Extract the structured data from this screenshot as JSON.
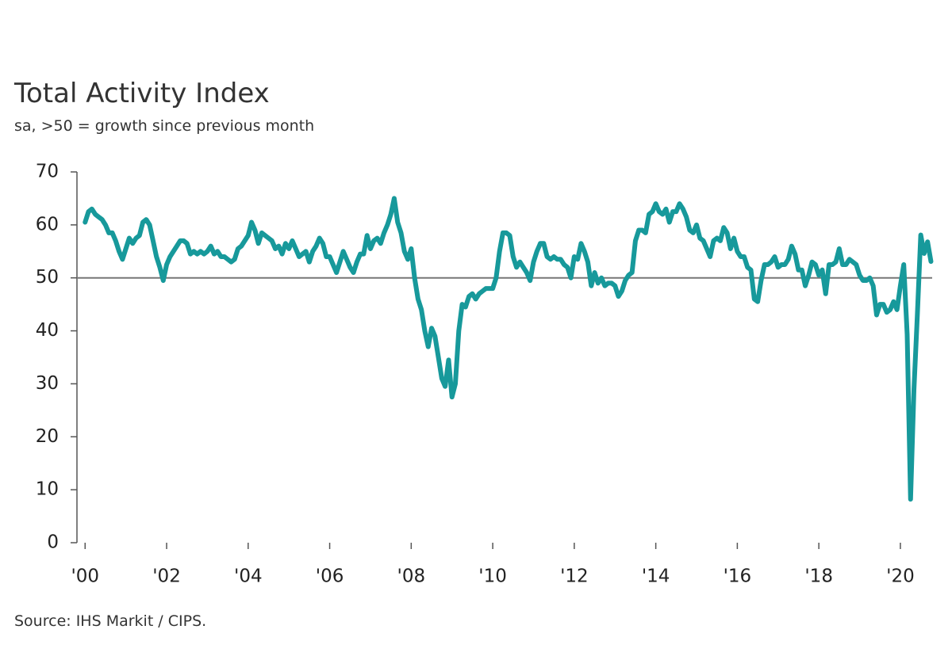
{
  "chart_data": {
    "type": "line",
    "title": "Total Activity Index",
    "subtitle": "sa, >50 = growth since previous month",
    "source": "Source: IHS Markit / CIPS.",
    "x": [
      2000,
      2000.083,
      2000.167,
      2000.25,
      2000.333,
      2000.417,
      2000.5,
      2000.583,
      2000.667,
      2000.75,
      2000.833,
      2000.917,
      2001,
      2001.083,
      2001.167,
      2001.25,
      2001.333,
      2001.417,
      2001.5,
      2001.583,
      2001.667,
      2001.75,
      2001.833,
      2001.917,
      2002,
      2002.083,
      2002.167,
      2002.25,
      2002.333,
      2002.417,
      2002.5,
      2002.583,
      2002.667,
      2002.75,
      2002.833,
      2002.917,
      2003,
      2003.083,
      2003.167,
      2003.25,
      2003.333,
      2003.417,
      2003.5,
      2003.583,
      2003.667,
      2003.75,
      2003.833,
      2003.917,
      2004,
      2004.083,
      2004.167,
      2004.25,
      2004.333,
      2004.417,
      2004.5,
      2004.583,
      2004.667,
      2004.75,
      2004.833,
      2004.917,
      2005,
      2005.083,
      2005.167,
      2005.25,
      2005.333,
      2005.417,
      2005.5,
      2005.583,
      2005.667,
      2005.75,
      2005.833,
      2005.917,
      2006,
      2006.083,
      2006.167,
      2006.25,
      2006.333,
      2006.417,
      2006.5,
      2006.583,
      2006.667,
      2006.75,
      2006.833,
      2006.917,
      2007,
      2007.083,
      2007.167,
      2007.25,
      2007.333,
      2007.417,
      2007.5,
      2007.583,
      2007.667,
      2007.75,
      2007.833,
      2007.917,
      2008,
      2008.083,
      2008.167,
      2008.25,
      2008.333,
      2008.417,
      2008.5,
      2008.583,
      2008.667,
      2008.75,
      2008.833,
      2008.917,
      2009,
      2009.083,
      2009.167,
      2009.25,
      2009.333,
      2009.417,
      2009.5,
      2009.583,
      2009.667,
      2009.75,
      2009.833,
      2009.917,
      2010,
      2010.083,
      2010.167,
      2010.25,
      2010.333,
      2010.417,
      2010.5,
      2010.583,
      2010.667,
      2010.75,
      2010.833,
      2010.917,
      2011,
      2011.083,
      2011.167,
      2011.25,
      2011.333,
      2011.417,
      2011.5,
      2011.583,
      2011.667,
      2011.75,
      2011.833,
      2011.917,
      2012,
      2012.083,
      2012.167,
      2012.25,
      2012.333,
      2012.417,
      2012.5,
      2012.583,
      2012.667,
      2012.75,
      2012.833,
      2012.917,
      2013,
      2013.083,
      2013.167,
      2013.25,
      2013.333,
      2013.417,
      2013.5,
      2013.583,
      2013.667,
      2013.75,
      2013.833,
      2013.917,
      2014,
      2014.083,
      2014.167,
      2014.25,
      2014.333,
      2014.417,
      2014.5,
      2014.583,
      2014.667,
      2014.75,
      2014.833,
      2014.917,
      2015,
      2015.083,
      2015.167,
      2015.25,
      2015.333,
      2015.417,
      2015.5,
      2015.583,
      2015.667,
      2015.75,
      2015.833,
      2015.917,
      2016,
      2016.083,
      2016.167,
      2016.25,
      2016.333,
      2016.417,
      2016.5,
      2016.583,
      2016.667,
      2016.75,
      2016.833,
      2016.917,
      2017,
      2017.083,
      2017.167,
      2017.25,
      2017.333,
      2017.417,
      2017.5,
      2017.583,
      2017.667,
      2017.75,
      2017.833,
      2017.917,
      2018,
      2018.083,
      2018.167,
      2018.25,
      2018.333,
      2018.417,
      2018.5,
      2018.583,
      2018.667,
      2018.75,
      2018.833,
      2018.917,
      2019,
      2019.083,
      2019.167,
      2019.25,
      2019.333,
      2019.417,
      2019.5,
      2019.583,
      2019.667,
      2019.75,
      2019.833,
      2019.917,
      2020,
      2020.083,
      2020.167,
      2020.25,
      2020.333,
      2020.417,
      2020.5,
      2020.583,
      2020.667,
      2020.75
    ],
    "series": [
      {
        "name": "Total Activity Index",
        "color": "#17999b",
        "values": [
          60.5,
          62.5,
          63,
          62,
          61.5,
          61,
          60,
          58.5,
          58.5,
          57,
          55,
          53.5,
          55.5,
          57.5,
          56.5,
          57.5,
          58,
          60.5,
          61,
          60,
          57,
          54,
          52,
          49.5,
          52.5,
          54,
          55,
          56,
          57,
          57,
          56.5,
          54.5,
          55,
          54.5,
          55,
          54.5,
          55,
          56,
          54.5,
          55,
          54,
          54,
          53.5,
          53,
          53.5,
          55.5,
          56,
          57,
          58,
          60.5,
          59,
          56.5,
          58.5,
          58,
          57.5,
          57,
          55.5,
          56,
          54.5,
          56.5,
          55.5,
          57,
          55.5,
          54,
          54.5,
          55,
          53,
          55,
          56,
          57.5,
          56.5,
          54,
          54,
          52.5,
          51,
          53,
          55,
          53.5,
          52,
          51,
          53,
          54.5,
          54.5,
          58,
          55.5,
          57,
          57.5,
          56.5,
          58.5,
          60,
          62,
          65,
          60.5,
          58.5,
          55,
          53.5,
          55.5,
          50,
          46,
          44,
          40,
          37,
          40.5,
          39,
          35,
          31,
          29.5,
          34.5,
          27.5,
          30,
          40,
          45,
          44.5,
          46.5,
          47,
          46,
          47,
          47.5,
          48,
          48,
          48,
          50,
          55,
          58.5,
          58.5,
          58,
          54,
          52,
          53,
          52,
          51,
          49.5,
          53,
          55,
          56.5,
          56.5,
          54,
          53.5,
          54,
          53.5,
          53.5,
          52.5,
          52,
          50,
          54,
          53.5,
          56.5,
          55,
          53,
          48.5,
          51,
          49,
          50,
          48.5,
          49,
          49,
          48.5,
          46.5,
          47.5,
          49.5,
          50.5,
          51,
          57,
          59,
          59,
          58.5,
          62,
          62.5,
          64,
          62.5,
          62,
          63,
          60.5,
          62.5,
          62.5,
          64,
          63,
          61.5,
          59,
          58.5,
          60,
          57.5,
          57,
          55.5,
          54,
          57,
          57.5,
          57,
          59.5,
          58.5,
          55.5,
          57.5,
          55,
          54,
          54,
          52,
          51.5,
          46,
          45.5,
          49.5,
          52.5,
          52.5,
          53,
          54,
          52,
          52.5,
          52.5,
          53.5,
          56,
          54.5,
          51.5,
          51.5,
          48.5,
          50.5,
          53,
          52.5,
          50.5,
          51.5,
          47,
          52.5,
          52.5,
          53,
          55.5,
          52.5,
          52.5,
          53.5,
          53,
          52.5,
          50.5,
          49.5,
          49.5,
          50,
          48.5,
          43,
          45,
          45,
          43.5,
          44,
          45.5,
          44,
          48.5,
          52.5,
          39.3,
          8.2,
          28.9,
          43.1,
          58.1,
          54.6,
          56.8,
          53.1
        ]
      }
    ],
    "xlim": [
      1999.8,
      2020.78
    ],
    "xticks": [
      {
        "value": 2000,
        "label": "'00"
      },
      {
        "value": 2002,
        "label": "'02"
      },
      {
        "value": 2004,
        "label": "'04"
      },
      {
        "value": 2006,
        "label": "'06"
      },
      {
        "value": 2008,
        "label": "'08"
      },
      {
        "value": 2010,
        "label": "'10"
      },
      {
        "value": 2012,
        "label": "'12"
      },
      {
        "value": 2014,
        "label": "'14"
      },
      {
        "value": 2016,
        "label": "'16"
      },
      {
        "value": 2018,
        "label": "'18"
      },
      {
        "value": 2020,
        "label": "'20"
      }
    ],
    "ylim": [
      0,
      70
    ],
    "yticks": [
      0,
      10,
      20,
      30,
      40,
      50,
      60,
      70
    ],
    "reference_line": 50
  }
}
